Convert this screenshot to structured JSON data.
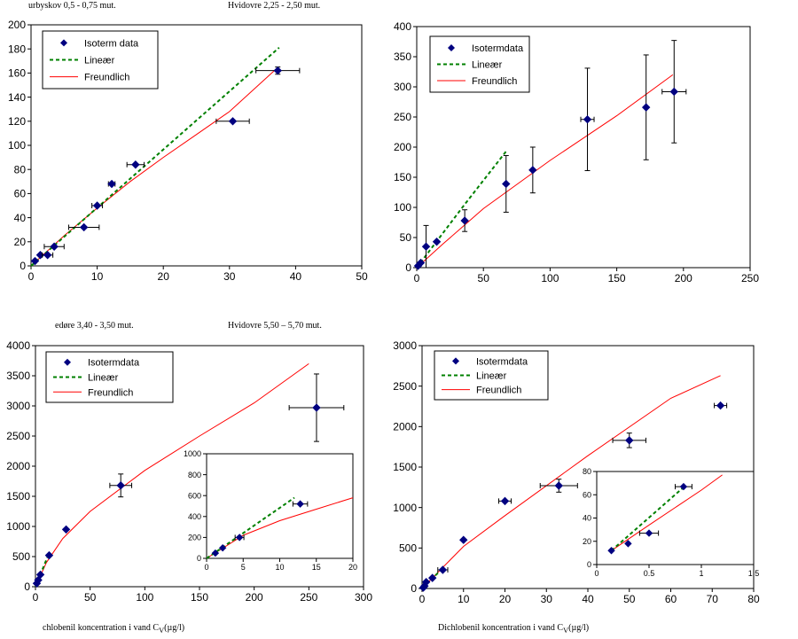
{
  "captions": {
    "top_left": "urbyskov 0,5 - 0,75 mut.",
    "top_right": "Hvidovre 2,25 - 2,50 mut.",
    "bottom_left": "edøre 3,40 - 3,50 mut.",
    "bottom_right": "Hvidovre 5,50 – 5,70 mut.",
    "xlabel_left": "chlobenil koncentration i vand C",
    "xlabel_right": "Dichlobenil koncentration i vand C",
    "xlabel_sub": "V",
    "xlabel_unit": "(µg/l)"
  },
  "colors": {
    "data": "#000080",
    "linear": "#008000",
    "freundlich": "#ff0000"
  },
  "chart_data": [
    {
      "type": "scatter",
      "xlim": [
        0,
        50
      ],
      "ylim": [
        0,
        200
      ],
      "xticks": [
        0,
        10,
        20,
        30,
        40,
        50
      ],
      "yticks": [
        0,
        20,
        40,
        60,
        80,
        100,
        120,
        140,
        160,
        180,
        200
      ],
      "legend": [
        "Isoterm data",
        "Lineær",
        "Freundlich"
      ],
      "legend_position": "top-left",
      "points": [
        {
          "x": 0.6,
          "y": 4,
          "xe": 0.2,
          "ye": 0
        },
        {
          "x": 1.4,
          "y": 9,
          "xe": 0,
          "ye": 0
        },
        {
          "x": 2.5,
          "y": 9,
          "xe": 0.8,
          "ye": 0
        },
        {
          "x": 3.5,
          "y": 16,
          "xe": 1.5,
          "ye": 0
        },
        {
          "x": 8.0,
          "y": 32,
          "xe": 2.3,
          "ye": 0
        },
        {
          "x": 10.0,
          "y": 50,
          "xe": 0.8,
          "ye": 0
        },
        {
          "x": 12.2,
          "y": 68,
          "xe": 0.5,
          "ye": 0
        },
        {
          "x": 15.8,
          "y": 84,
          "xe": 1.3,
          "ye": 0
        },
        {
          "x": 30.5,
          "y": 120,
          "xe": 2.5,
          "ye": 0
        },
        {
          "x": 37.3,
          "y": 162,
          "xe": 3.3,
          "ye": 3
        }
      ],
      "linear": [
        [
          0,
          0
        ],
        [
          37.5,
          181
        ]
      ],
      "freundlich": [
        [
          0,
          0
        ],
        [
          5,
          25
        ],
        [
          10,
          48
        ],
        [
          15,
          70
        ],
        [
          20,
          90
        ],
        [
          25,
          109
        ],
        [
          30,
          128
        ],
        [
          37,
          163
        ]
      ]
    },
    {
      "type": "scatter",
      "xlim": [
        0,
        250
      ],
      "ylim": [
        0,
        400
      ],
      "xticks": [
        0,
        50,
        100,
        150,
        200,
        250
      ],
      "yticks": [
        0,
        50,
        100,
        150,
        200,
        250,
        300,
        350,
        400
      ],
      "legend": [
        "Isotermdata",
        "Lineær",
        "Freundlich"
      ],
      "legend_position": "top-left",
      "points": [
        {
          "x": 1,
          "y": 3,
          "xe": 0,
          "ye": 0
        },
        {
          "x": 3,
          "y": 8,
          "xe": 0,
          "ye": 0
        },
        {
          "x": 7,
          "y": 35,
          "xe": 0,
          "ye": 35
        },
        {
          "x": 15,
          "y": 43,
          "xe": 0,
          "ye": 0
        },
        {
          "x": 36,
          "y": 78,
          "xe": 0,
          "ye": 18
        },
        {
          "x": 67,
          "y": 139,
          "xe": 0,
          "ye": 47
        },
        {
          "x": 87,
          "y": 162,
          "xe": 0,
          "ye": 38
        },
        {
          "x": 128,
          "y": 246,
          "xe": 5,
          "ye": 85
        },
        {
          "x": 172,
          "y": 266,
          "xe": 0,
          "ye": 87
        },
        {
          "x": 193,
          "y": 292,
          "xe": 9,
          "ye": 85
        }
      ],
      "linear": [
        [
          0,
          0
        ],
        [
          36,
          105
        ],
        [
          67,
          193
        ]
      ],
      "freundlich": [
        [
          0,
          0
        ],
        [
          20,
          40
        ],
        [
          50,
          98
        ],
        [
          100,
          178
        ],
        [
          150,
          252
        ],
        [
          192,
          320
        ]
      ]
    },
    {
      "type": "scatter",
      "xlim": [
        0,
        300
      ],
      "ylim": [
        0,
        4000
      ],
      "xticks": [
        0,
        50,
        100,
        150,
        200,
        250,
        300
      ],
      "yticks": [
        0,
        500,
        1000,
        1500,
        2000,
        2500,
        3000,
        3500,
        4000
      ],
      "legend": [
        "Isotermdata",
        "Lineær",
        "Freundlich"
      ],
      "legend_position": "top-left",
      "points": [
        {
          "x": 1.2,
          "y": 55,
          "xe": 0,
          "ye": 0
        },
        {
          "x": 2.5,
          "y": 110,
          "xe": 0,
          "ye": 0
        },
        {
          "x": 4.5,
          "y": 200,
          "xe": 0,
          "ye": 0
        },
        {
          "x": 12.5,
          "y": 520,
          "xe": 0,
          "ye": 0
        },
        {
          "x": 28,
          "y": 950,
          "xe": 0,
          "ye": 0
        },
        {
          "x": 78,
          "y": 1680,
          "xe": 10,
          "ye": 190
        },
        {
          "x": 257,
          "y": 2970,
          "xe": 25,
          "ye": 560
        }
      ],
      "linear": [
        [
          0,
          0
        ],
        [
          12.5,
          560
        ]
      ],
      "freundlich": [
        [
          0,
          0
        ],
        [
          10,
          400
        ],
        [
          25,
          800
        ],
        [
          50,
          1250
        ],
        [
          100,
          1930
        ],
        [
          150,
          2500
        ],
        [
          200,
          3050
        ],
        [
          250,
          3700
        ]
      ],
      "inset": {
        "xlim": [
          0,
          20
        ],
        "ylim": [
          0,
          1000
        ],
        "xticks": [
          0,
          5,
          10,
          15,
          20
        ],
        "yticks": [
          0,
          200,
          400,
          600,
          800,
          1000
        ],
        "points": [
          {
            "x": 1.2,
            "y": 50,
            "xe": 0,
            "ye": 0
          },
          {
            "x": 2.2,
            "y": 100,
            "xe": 0,
            "ye": 0
          },
          {
            "x": 4.5,
            "y": 200,
            "xe": 0.6,
            "ye": 0
          },
          {
            "x": 12.8,
            "y": 520,
            "xe": 1.0,
            "ye": 0
          }
        ],
        "linear": [
          [
            0,
            0
          ],
          [
            12,
            580
          ]
        ],
        "freundlich": [
          [
            0,
            0
          ],
          [
            5,
            220
          ],
          [
            10,
            360
          ],
          [
            15,
            470
          ],
          [
            20,
            580
          ]
        ]
      }
    },
    {
      "type": "scatter",
      "xlim": [
        0,
        80
      ],
      "ylim": [
        0,
        3000
      ],
      "xticks": [
        0,
        10,
        20,
        30,
        40,
        50,
        60,
        70,
        80
      ],
      "yticks": [
        0,
        500,
        1000,
        1500,
        2000,
        2500,
        3000
      ],
      "legend": [
        "Isotermdata",
        "Lineær",
        "Freundlich"
      ],
      "legend_position": "top-left",
      "points": [
        {
          "x": 0.3,
          "y": 10,
          "xe": 0,
          "ye": 0
        },
        {
          "x": 0.6,
          "y": 30,
          "xe": 0,
          "ye": 0
        },
        {
          "x": 1.0,
          "y": 80,
          "xe": 0,
          "ye": 0
        },
        {
          "x": 2.5,
          "y": 130,
          "xe": 0,
          "ye": 0
        },
        {
          "x": 5,
          "y": 230,
          "xe": 1.2,
          "ye": 0
        },
        {
          "x": 10,
          "y": 600,
          "xe": 0,
          "ye": 0
        },
        {
          "x": 20,
          "y": 1080,
          "xe": 1.5,
          "ye": 0
        },
        {
          "x": 33,
          "y": 1270,
          "xe": 4.5,
          "ye": 80
        },
        {
          "x": 50,
          "y": 1830,
          "xe": 4,
          "ye": 90
        },
        {
          "x": 72,
          "y": 2260,
          "xe": 1.5,
          "ye": 0
        }
      ],
      "linear": [
        [
          0,
          0
        ],
        [
          5,
          250
        ]
      ],
      "freundlich": [
        [
          0,
          0
        ],
        [
          10,
          520
        ],
        [
          20,
          900
        ],
        [
          40,
          1640
        ],
        [
          60,
          2350
        ],
        [
          72,
          2630
        ]
      ],
      "inset": {
        "xlim": [
          0,
          1.5
        ],
        "ylim": [
          0,
          80
        ],
        "xticks": [
          0,
          0.5,
          1,
          1.5
        ],
        "xticklabels": [
          "0",
          "0.5",
          "1",
          "1.5"
        ],
        "yticks": [
          0,
          20,
          40,
          60,
          80
        ],
        "points": [
          {
            "x": 0.14,
            "y": 12,
            "xe": 0,
            "ye": 0
          },
          {
            "x": 0.3,
            "y": 18,
            "xe": 0,
            "ye": 0
          },
          {
            "x": 0.5,
            "y": 27,
            "xe": 0.09,
            "ye": 0
          },
          {
            "x": 0.83,
            "y": 67,
            "xe": 0.08,
            "ye": 0
          }
        ],
        "linear": [
          [
            0.14,
            12
          ],
          [
            0.85,
            68
          ]
        ],
        "freundlich": [
          [
            0.14,
            12
          ],
          [
            0.5,
            34
          ],
          [
            1.0,
            64
          ],
          [
            1.2,
            77
          ]
        ]
      }
    }
  ]
}
